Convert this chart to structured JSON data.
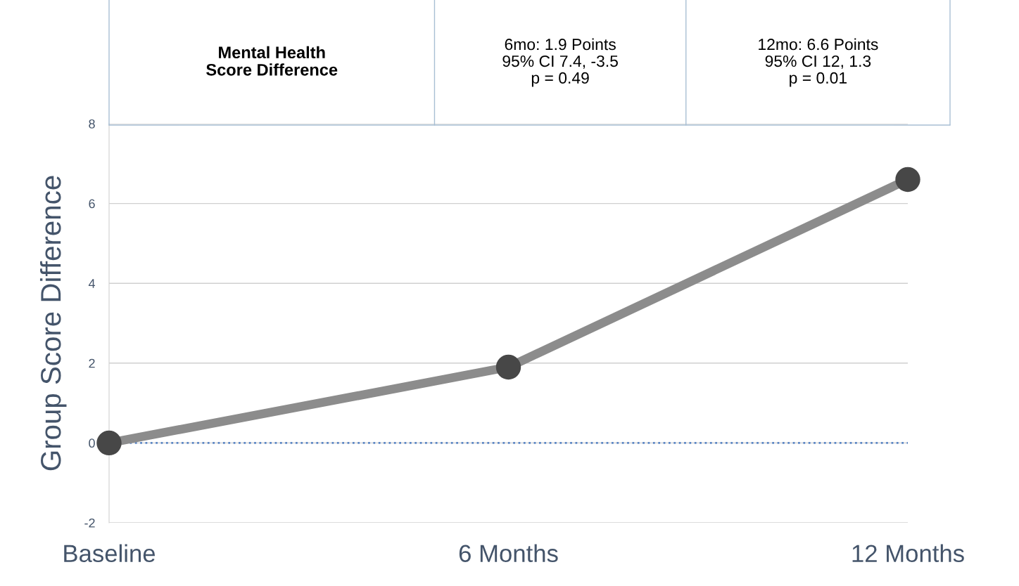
{
  "chart_data": {
    "type": "line",
    "ylabel": "Group Score Difference",
    "categories": [
      "Baseline",
      "6 Months",
      "12 Months"
    ],
    "series": [
      {
        "color": "#8c8c8c",
        "colors": [
          "#474747",
          "#474747",
          "#474747"
        ],
        "values": [
          0,
          1.9,
          6.6
        ]
      }
    ],
    "ylim": [
      -2,
      8
    ],
    "yticks": [
      -2,
      0,
      2,
      4,
      6,
      8
    ],
    "grid": "y",
    "marker": "circle",
    "line_style": "solid",
    "ref_lines": [
      {
        "axis": "y",
        "value": 0,
        "color": "#5b86c5",
        "line_style": "dotted"
      }
    ],
    "annotations": [
      "Mental Health\nScore Difference",
      "6mo: 1.9 Points\n95% CI 7.4, -3.5\np = 0.49",
      "12mo: 6.6 Points\n95% CI 12, 1.3\np = 0.01"
    ]
  }
}
